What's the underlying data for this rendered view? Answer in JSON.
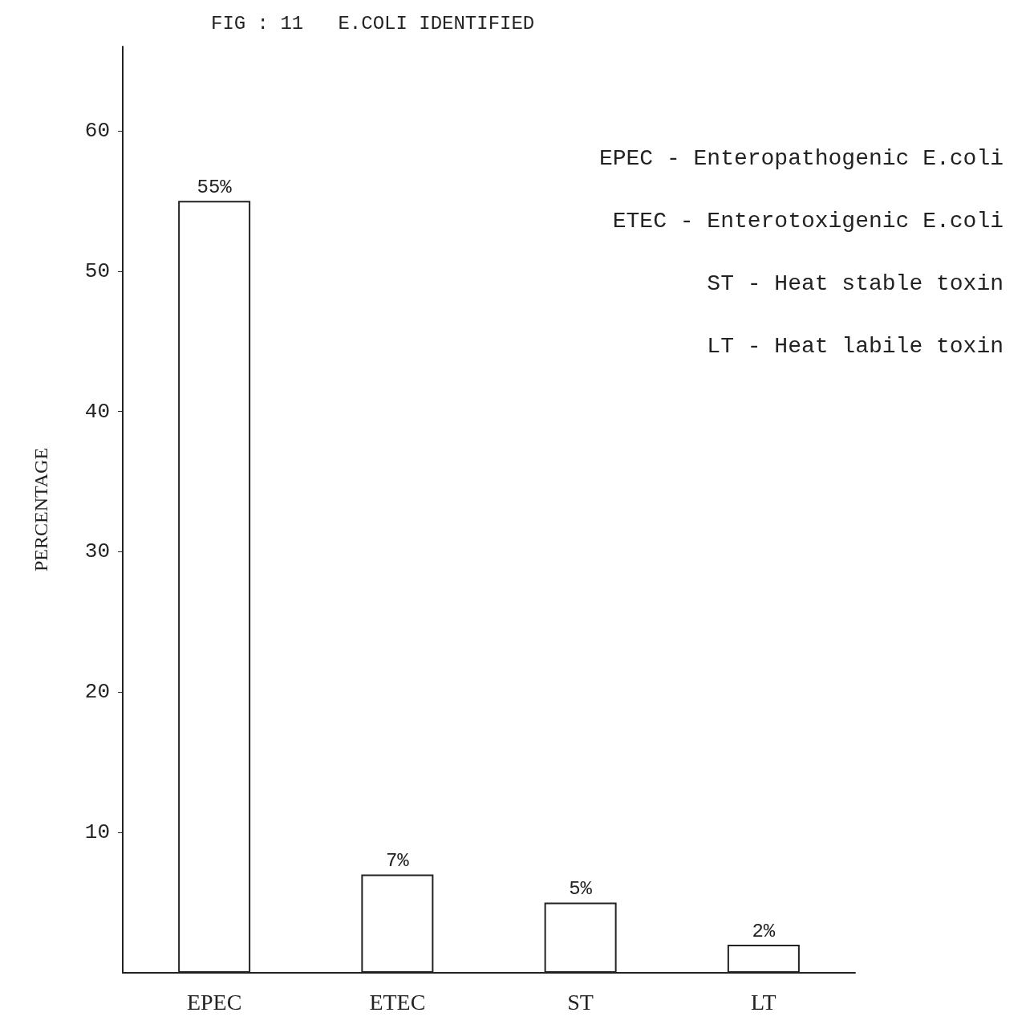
{
  "chart_data": {
    "type": "bar",
    "title": "FIG : 11   E.COLI IDENTIFIED",
    "ylabel": "PERCENTAGE",
    "categories": [
      "EPEC",
      "ETEC",
      "ST",
      "LT"
    ],
    "values": [
      55,
      7,
      5,
      2
    ],
    "value_labels": [
      "55%",
      "7%",
      "5%",
      "2%"
    ],
    "color": "#ffffff",
    "ylim": [
      0,
      66
    ],
    "yticks": [
      10,
      20,
      30,
      40,
      50,
      60
    ],
    "grid": false,
    "annotations": [
      "EPEC - Enteropathogenic E.coli",
      "ETEC - Enterotoxigenic E.coli",
      "ST - Heat stable toxin",
      "LT - Heat labile toxin"
    ]
  }
}
